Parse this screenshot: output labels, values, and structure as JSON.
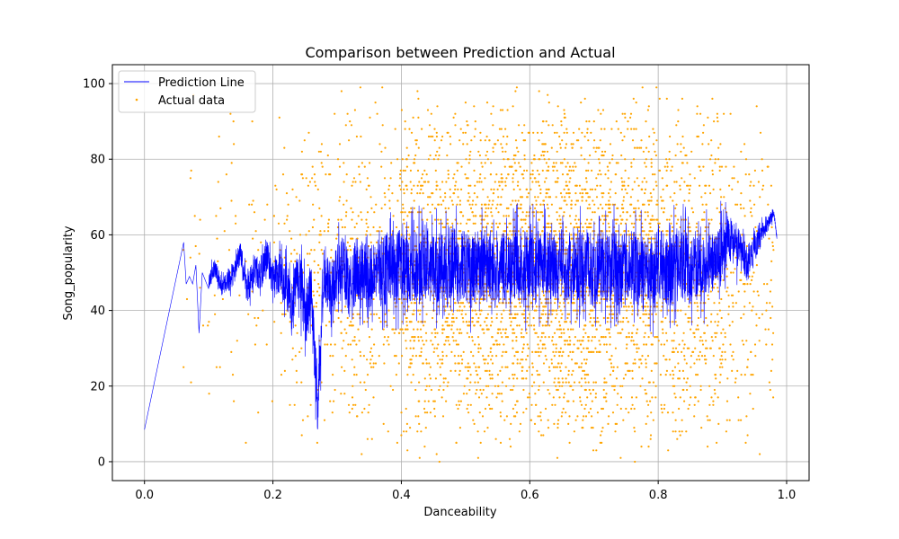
{
  "chart_data": {
    "type": "scatter",
    "title": "Comparison between Prediction and Actual",
    "xlabel": "Danceability",
    "ylabel": "Song_popularity",
    "xlim": [
      -0.05,
      1.035
    ],
    "ylim": [
      -5,
      105
    ],
    "xticks": [
      0.0,
      0.2,
      0.4,
      0.6,
      0.8,
      1.0
    ],
    "xtick_labels": [
      "0.0",
      "0.2",
      "0.4",
      "0.6",
      "0.8",
      "1.0"
    ],
    "yticks": [
      0,
      20,
      40,
      60,
      80,
      100
    ],
    "ytick_labels": [
      "0",
      "20",
      "40",
      "60",
      "80",
      "100"
    ],
    "grid": true,
    "legend_position": "top-left",
    "series": [
      {
        "name": "Prediction Line",
        "kind": "line",
        "color": "#0000ff",
        "x": [
          0.0,
          0.061,
          0.065,
          0.07,
          0.075,
          0.08,
          0.085,
          0.09,
          0.1,
          0.11,
          0.12,
          0.13,
          0.14,
          0.15,
          0.16,
          0.17,
          0.18,
          0.19,
          0.2,
          0.21,
          0.22,
          0.23,
          0.24,
          0.25,
          0.26,
          0.27,
          0.28,
          0.29,
          0.3,
          0.31,
          0.32,
          0.33,
          0.34,
          0.35,
          0.36,
          0.37,
          0.38,
          0.39,
          0.4,
          0.41,
          0.42,
          0.43,
          0.44,
          0.45,
          0.46,
          0.47,
          0.48,
          0.49,
          0.5,
          0.51,
          0.52,
          0.53,
          0.54,
          0.55,
          0.56,
          0.57,
          0.58,
          0.59,
          0.6,
          0.61,
          0.62,
          0.63,
          0.64,
          0.65,
          0.66,
          0.67,
          0.68,
          0.69,
          0.7,
          0.71,
          0.72,
          0.73,
          0.74,
          0.75,
          0.76,
          0.77,
          0.78,
          0.79,
          0.8,
          0.81,
          0.82,
          0.83,
          0.84,
          0.85,
          0.86,
          0.87,
          0.88,
          0.89,
          0.9,
          0.91,
          0.92,
          0.93,
          0.94,
          0.95,
          0.96,
          0.97,
          0.98,
          0.985
        ],
        "y": [
          8.5,
          58,
          47,
          49,
          47,
          52,
          34,
          50,
          47,
          52,
          46,
          48,
          50,
          55,
          45,
          51,
          49,
          55,
          48,
          50,
          45,
          40,
          52,
          38,
          44,
          14,
          51,
          46,
          50,
          52,
          45,
          51,
          50,
          48,
          52,
          49,
          53,
          51,
          52,
          50,
          52,
          51,
          53,
          51,
          52,
          50,
          53,
          51,
          52,
          50,
          53,
          51,
          52,
          49,
          52,
          51,
          53,
          50,
          52,
          51,
          53,
          52,
          51,
          52,
          50,
          53,
          51,
          52,
          50,
          53,
          51,
          52,
          50,
          51,
          52,
          50,
          51,
          49,
          52,
          51,
          50,
          53,
          52,
          50,
          52,
          51,
          53,
          52,
          56,
          60,
          57,
          55,
          52,
          56,
          60,
          63,
          66,
          59
        ],
        "noise_amplitude": [
          0,
          0,
          0,
          0,
          0,
          0,
          0,
          0,
          3,
          3,
          3,
          4,
          4,
          4,
          5,
          5,
          6,
          6,
          7,
          8,
          9,
          9,
          10,
          10,
          10,
          10,
          10,
          10,
          10,
          10,
          11,
          11,
          11,
          11,
          11,
          12,
          12,
          12,
          12,
          12,
          12,
          12,
          12,
          12,
          12,
          12,
          12,
          12,
          12,
          12,
          12,
          12,
          12,
          12,
          12,
          12,
          12,
          12,
          12,
          12,
          12,
          12,
          12,
          12,
          12,
          12,
          12,
          12,
          12,
          12,
          12,
          12,
          12,
          12,
          12,
          12,
          12,
          12,
          12,
          12,
          12,
          12,
          12,
          11,
          11,
          11,
          10,
          10,
          9,
          8,
          7,
          6,
          5,
          4,
          3,
          2,
          1,
          0
        ]
      },
      {
        "name": "Actual data",
        "kind": "scatter",
        "color": "#ffa500",
        "x_density": [
          [
            0.06,
            0.1,
            0.1
          ],
          [
            0.1,
            0.2,
            0.4
          ],
          [
            0.2,
            0.3,
            1.2
          ],
          [
            0.3,
            0.4,
            2.2
          ],
          [
            0.4,
            0.5,
            4.5
          ],
          [
            0.5,
            0.6,
            5.5
          ],
          [
            0.6,
            0.7,
            5.8
          ],
          [
            0.7,
            0.8,
            5.0
          ],
          [
            0.8,
            0.9,
            3.2
          ],
          [
            0.9,
            0.98,
            1.2
          ]
        ],
        "y_range": [
          0,
          100
        ]
      }
    ]
  }
}
